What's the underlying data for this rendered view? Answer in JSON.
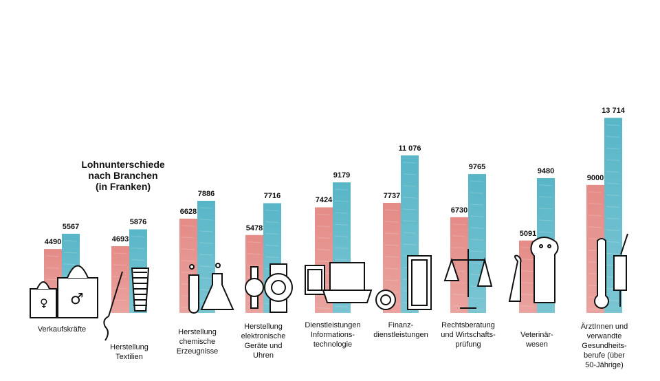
{
  "chart_data": {
    "type": "bar",
    "title": "Lohnunterschiede\nnach Branchen\n(in Franken)",
    "categories": [
      "Verkaufskräfte",
      "Herstellung\nTextilien",
      "Herstellung\nchemische\nErzeugnisse",
      "Herstellung\nelektronische\nGeräte und\nUhren",
      "Dienstleistungen\nInformations-\ntechnologie",
      "Finanz-\ndienstleistungen",
      "Rechtsberatung\nund Wirtschafts-\nprüfung",
      "Veterinär-\nwesen",
      "ÄrztInnen und\nverwandte\nGesundheits-\nberufe (über\n50-Jährige)"
    ],
    "series": [
      {
        "values": [
          4490,
          4693,
          6628,
          5478,
          7424,
          7737,
          6730,
          5091,
          9000
        ],
        "color": "#e38580"
      },
      {
        "values": [
          5567,
          5876,
          7886,
          7716,
          9179,
          11076,
          9765,
          9480,
          13714
        ],
        "color": "#4fb2c4"
      }
    ],
    "value_labels": [
      [
        "4490",
        "5567"
      ],
      [
        "4693",
        "5876"
      ],
      [
        "6628",
        "7886"
      ],
      [
        "5478",
        "7716"
      ],
      [
        "7424",
        "9179"
      ],
      [
        "7737",
        "11 076"
      ],
      [
        "6730",
        "9765"
      ],
      [
        "5091",
        "9480"
      ],
      [
        "9000",
        "13 714"
      ]
    ],
    "ylim": [
      0,
      14000
    ],
    "legend": "none",
    "grid": false,
    "illustrations": [
      "shopping-bags-icon",
      "thread-spool-needle-icon",
      "lab-flasks-icon",
      "wristwatches-icon",
      "laptop-tablet-icon",
      "banknotes-coin-icon",
      "scales-of-justice-icon",
      "cat-dog-icon",
      "thermometer-syringe-icon"
    ]
  }
}
